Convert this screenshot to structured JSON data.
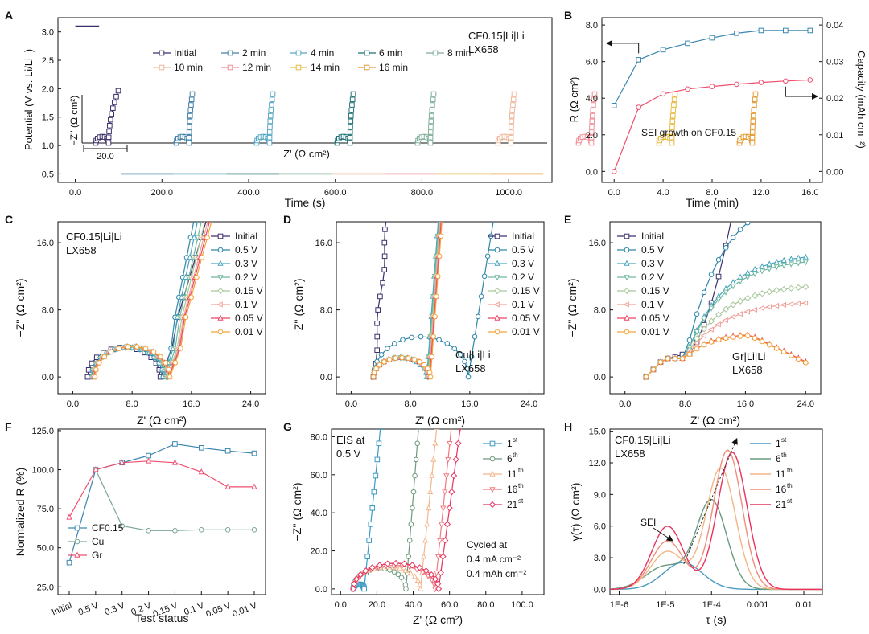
{
  "colors": {
    "initial": "#3b2f6b",
    "steps": [
      "#3f7fa6",
      "#56a8c4",
      "#1d6f73",
      "#7fae98",
      "#f0b69a",
      "#ef8e95",
      "#e6b83a",
      "#e4962e"
    ],
    "blue": "#3a86b0",
    "pink": "#ef4f6f",
    "sage": "#7aa596",
    "C_series": [
      "#3b2f6b",
      "#2d86a8",
      "#4aa6be",
      "#6fb79e",
      "#a7c79a",
      "#f2a09a",
      "#ef4466",
      "#f2a33a"
    ],
    "G_series": [
      "#3a9ac4",
      "#6e9a7e",
      "#f3b58a",
      "#f07a80",
      "#e8335f"
    ],
    "H_series": [
      "#4a9ac0",
      "#6a9a7e",
      "#f3b585",
      "#ef8e7a",
      "#e8335f"
    ]
  },
  "panels": {
    "A": {
      "letter": "A",
      "annotation": [
        "CF0.15|Li|Li",
        "LX658"
      ],
      "inset_scale": "20.0",
      "inset_xlabel": "Z' (Ω cm²)",
      "inset_ylabel": "−Z'' (Ω cm²)"
    },
    "B": {
      "letter": "B",
      "annotation": "SEI growth on CF0.15"
    },
    "C": {
      "letter": "C",
      "annotation": [
        "CF0.15|Li|Li",
        "LX658"
      ]
    },
    "D": {
      "letter": "D",
      "annotation": [
        "Cu|Li|Li",
        "LX658"
      ]
    },
    "E": {
      "letter": "E",
      "annotation": [
        "Gr|Li|Li",
        "LX658"
      ]
    },
    "F": {
      "letter": "F"
    },
    "G": {
      "letter": "G",
      "annotation_top": [
        "EIS at",
        "0.5 V"
      ],
      "annotation_bottom": [
        "Cycled at",
        "0.4 mA cm⁻²",
        "0.4 mAh cm⁻²"
      ]
    },
    "H": {
      "letter": "H",
      "annotation": [
        "CF0.15|Li|Li",
        "LX658"
      ],
      "sei_label": "SEI"
    }
  },
  "chart_data": [
    {
      "id": "A",
      "type": "line",
      "xlabel": "Time (s)",
      "ylabel": "Potential (V vs. Li/Li⁺)",
      "xlim": [
        -40,
        1100
      ],
      "ylim": [
        0.35,
        3.25
      ],
      "xticks": [
        "0.0",
        "200.0",
        "400.0",
        "600.0",
        "800.0",
        "1000.0"
      ],
      "yticks": [
        "0.5",
        "1.0",
        "1.5",
        "2.0",
        "2.5",
        "3.0"
      ],
      "potential_trace": {
        "x_start": 0,
        "x_end": 55,
        "y": 3.1
      },
      "potential_baseline": {
        "x_start": 105,
        "x_end": 1080,
        "y": 0.5
      },
      "legend": [
        "Initial",
        "2 min",
        "4 min",
        "6 min",
        "8 min",
        "10 min",
        "12 min",
        "14 min",
        "16 min"
      ],
      "legend_rows": [
        [
          "Initial",
          "2 min",
          "4 min",
          "6 min",
          "8 min"
        ],
        [
          "10 min",
          "12 min",
          "14 min",
          "16 min"
        ]
      ],
      "inset_nyquist_x_offsets": [
        115,
        215,
        315,
        415,
        515,
        615,
        715,
        815,
        915
      ]
    },
    {
      "id": "B",
      "type": "line",
      "xlabel": "Time (min)",
      "ylabel_left": "R (Ω cm²)",
      "ylabel_right": "Capacity (mAh cm⁻²)",
      "xlim": [
        -1,
        17
      ],
      "ylim_left": [
        -0.6,
        8.4
      ],
      "ylim_right": [
        -0.003,
        0.042
      ],
      "xticks": [
        "0.0",
        "4.0",
        "8.0",
        "12.0",
        "16.0"
      ],
      "yticks_left": [
        "0.0",
        "2.0",
        "4.0",
        "6.0",
        "8.0"
      ],
      "yticks_right": [
        "0.00",
        "0.01",
        "0.02",
        "0.03",
        "0.04"
      ],
      "x": [
        0,
        2,
        4,
        6,
        8,
        10,
        12,
        14,
        16
      ],
      "series": [
        {
          "name": "R",
          "axis": "left",
          "values": [
            3.6,
            6.1,
            6.65,
            7.0,
            7.3,
            7.55,
            7.7,
            7.7,
            7.7
          ]
        },
        {
          "name": "Capacity",
          "axis": "right",
          "values": [
            0.0,
            0.0175,
            0.0212,
            0.0225,
            0.0232,
            0.0238,
            0.0243,
            0.0247,
            0.025
          ]
        }
      ]
    },
    {
      "id": "C",
      "type": "line",
      "xlabel": "Z' (Ω cm²)",
      "ylabel": "−Z'' (Ω cm²)",
      "xlim": [
        -2,
        26
      ],
      "ylim": [
        -2,
        18.5
      ],
      "xticks": [
        "0.0",
        "8.0",
        "16.0",
        "24.0"
      ],
      "yticks": [
        "0.0",
        "8.0",
        "16.0"
      ],
      "legend": [
        "Initial",
        "0.5 V",
        "0.3 V",
        "0.2 V",
        "0.15 V",
        "0.1 V",
        "0.05 V",
        "0.01 V"
      ],
      "curves": [
        {
          "name": "Initial",
          "r0": 2.0,
          "r1": 11.8,
          "tail_slope": 3.0
        },
        {
          "name": "0.5 V",
          "r0": 2.5,
          "r1": 12.2,
          "tail_slope": 4.5
        },
        {
          "name": "0.3 V",
          "r0": 2.6,
          "r1": 12.4,
          "tail_slope": 4.2
        },
        {
          "name": "0.2 V",
          "r0": 2.7,
          "r1": 12.6,
          "tail_slope": 3.9
        },
        {
          "name": "0.15 V",
          "r0": 2.7,
          "r1": 12.8,
          "tail_slope": 3.7
        },
        {
          "name": "0.1 V",
          "r0": 2.8,
          "r1": 12.9,
          "tail_slope": 3.5
        },
        {
          "name": "0.05 V",
          "r0": 2.9,
          "r1": 13.0,
          "tail_slope": 3.4
        },
        {
          "name": "0.01 V",
          "r0": 3.0,
          "r1": 13.1,
          "tail_slope": 3.3
        }
      ]
    },
    {
      "id": "D",
      "type": "line",
      "xlabel": "Z' (Ω cm²)",
      "ylabel": "−Z'' (Ω cm²)",
      "xlim": [
        -2,
        26
      ],
      "ylim": [
        -2,
        18.5
      ],
      "xticks": [
        "0.0",
        "8.0",
        "16.0",
        "24.0"
      ],
      "yticks": [
        "0.0",
        "8.0",
        "16.0"
      ],
      "legend": [
        "Initial",
        "0.5 V",
        "0.3 V",
        "0.2 V",
        "0.15 V",
        "0.1 V",
        "0.05 V",
        "0.01 V"
      ],
      "curves": [
        {
          "name": "Initial",
          "r0": 3.0,
          "r1": 3.6,
          "tail_slope": 10.0
        },
        {
          "name": "0.5 V",
          "r0": 3.0,
          "r1": 15.8,
          "tail_slope": 8.0
        },
        {
          "name": "0.3 V",
          "r0": 3.0,
          "r1": 10.2,
          "tail_slope": 12.0
        },
        {
          "name": "0.2 V",
          "r0": 3.0,
          "r1": 10.3,
          "tail_slope": 12.0
        },
        {
          "name": "0.15 V",
          "r0": 3.0,
          "r1": 10.4,
          "tail_slope": 12.0
        },
        {
          "name": "0.1 V",
          "r0": 3.0,
          "r1": 10.5,
          "tail_slope": 12.0
        },
        {
          "name": "0.05 V",
          "r0": 3.0,
          "r1": 10.6,
          "tail_slope": 12.0
        },
        {
          "name": "0.01 V",
          "r0": 3.0,
          "r1": 10.7,
          "tail_slope": 12.0
        }
      ]
    },
    {
      "id": "E",
      "type": "line",
      "xlabel": "Z' (Ω cm²)",
      "ylabel": "−Z'' (Ω cm²)",
      "xlim": [
        -2,
        26
      ],
      "ylim": [
        -2,
        18.5
      ],
      "xticks": [
        "0.0",
        "8.0",
        "16.0",
        "24.0"
      ],
      "yticks": [
        "0.0",
        "8.0",
        "16.0"
      ],
      "legend": [
        "Initial",
        "0.5 V",
        "0.3 V",
        "0.2 V",
        "0.15 V",
        "0.1 V",
        "0.05 V",
        "0.01 V"
      ],
      "curves": [
        {
          "name": "Initial",
          "peak": 999,
          "final": 999
        },
        {
          "name": "0.5 V",
          "peak": 22.0,
          "final": 21.0
        },
        {
          "name": "0.3 V",
          "peak": 14.6,
          "final": 14.2
        },
        {
          "name": "0.2 V",
          "peak": 14.0,
          "final": 13.6
        },
        {
          "name": "0.15 V",
          "peak": 10.9,
          "final": 10.6
        },
        {
          "name": "0.1 V",
          "peak": 8.9,
          "final": 8.3
        },
        {
          "name": "0.05 V",
          "peak": 5.0,
          "final": 2.2
        },
        {
          "name": "0.01 V",
          "peak": 4.9,
          "final": 2.1
        }
      ]
    },
    {
      "id": "F",
      "type": "line",
      "xlabel": "Test status",
      "ylabel": "Normalized R (%)",
      "ylim": [
        20,
        126
      ],
      "yticks": [
        "25.0",
        "50.0",
        "75.0",
        "100.0",
        "125.0"
      ],
      "categories": [
        "Initial",
        "0.5 V",
        "0.3 V",
        "0.2 V",
        "0.15 V",
        "0.1 V",
        "0.05 V",
        "0.01 V"
      ],
      "series": [
        {
          "name": "CF0.15",
          "values": [
            40.5,
            100,
            104.5,
            109,
            116.5,
            114,
            112,
            110.5
          ]
        },
        {
          "name": "Cu",
          "values": [
            null,
            100,
            64,
            61,
            61,
            61.5,
            61.5,
            61.5
          ]
        },
        {
          "name": "Gr",
          "values": [
            69.5,
            100,
            104.5,
            105.5,
            104.5,
            98.5,
            89,
            89
          ]
        }
      ]
    },
    {
      "id": "G",
      "type": "line",
      "xlabel": "Z' (Ω cm²)",
      "ylabel": "−Z'' (Ω cm²)",
      "xlim": [
        -5,
        112
      ],
      "ylim": [
        -3,
        84
      ],
      "xticks": [
        "0.0",
        "20.0",
        "40.0",
        "60.0",
        "80.0",
        "100.0"
      ],
      "yticks": [
        "0.0",
        "20.0",
        "40.0",
        "60.0",
        "80.0"
      ],
      "legend": [
        "1st",
        "6th",
        "11th",
        "16th",
        "21st"
      ],
      "legend_base": [
        "1",
        "6",
        "11",
        "16",
        "21"
      ],
      "legend_sup": [
        "st",
        "th",
        "th",
        "th",
        "st"
      ],
      "curves": [
        {
          "name": "1st",
          "r0": 7,
          "r1": 13,
          "top_x": 22
        },
        {
          "name": "6th",
          "r0": 7,
          "r1": 36,
          "top_x": 43
        },
        {
          "name": "11th",
          "r0": 7,
          "r1": 44,
          "top_x": 53
        },
        {
          "name": "16th",
          "r0": 7,
          "r1": 52,
          "top_x": 61
        },
        {
          "name": "21st",
          "r0": 7,
          "r1": 54,
          "top_x": 66
        }
      ]
    },
    {
      "id": "H",
      "type": "area",
      "xlabel": "τ (s)",
      "ylabel": "γ(τ) (Ω cm²)",
      "xlim_log10": [
        -6.2,
        -1.6
      ],
      "ylim": [
        -0.5,
        15.2
      ],
      "xticks": [
        "1E-6",
        "1E-5",
        "1E-4",
        "0.001",
        "0.01"
      ],
      "yticks": [
        "0.0",
        "3.0",
        "6.0",
        "9.0",
        "12.0",
        "15.0"
      ],
      "legend": [
        "1st",
        "6th",
        "11th",
        "16th",
        "21st"
      ],
      "legend_base": [
        "1",
        "6",
        "11",
        "16",
        "21"
      ],
      "legend_sup": [
        "st",
        "th",
        "th",
        "th",
        "st"
      ],
      "peaks": [
        {
          "name": "1st",
          "components": [
            [
              2.55,
              -4.62,
              0.42
            ]
          ]
        },
        {
          "name": "6th",
          "components": [
            [
              2.2,
              -5.0,
              0.42
            ],
            [
              8.4,
              -4.0,
              0.33
            ]
          ]
        },
        {
          "name": "11th",
          "components": [
            [
              3.6,
              -4.95,
              0.36
            ],
            [
              11.5,
              -3.8,
              0.32
            ]
          ]
        },
        {
          "name": "16th",
          "components": [
            [
              4.6,
              -4.95,
              0.35
            ],
            [
              13.2,
              -3.65,
              0.31
            ]
          ]
        },
        {
          "name": "21st",
          "components": [
            [
              6.0,
              -4.95,
              0.34
            ],
            [
              13.0,
              -3.55,
              0.32
            ]
          ]
        }
      ],
      "trend_arrow": {
        "from": [
          -4.6,
          2.4
        ],
        "to": [
          -3.45,
          14.3
        ]
      }
    }
  ]
}
